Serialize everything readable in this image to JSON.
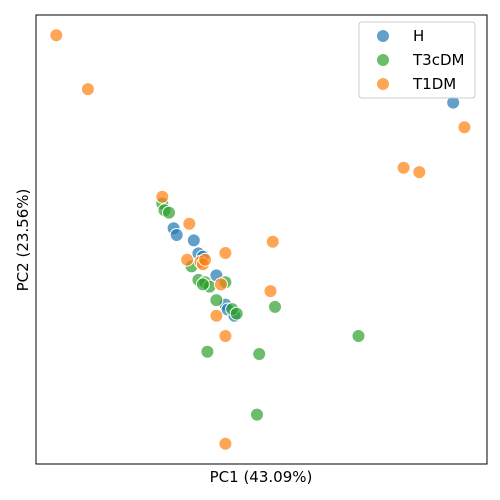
{
  "chart_data": {
    "type": "scatter",
    "xlabel": "PC1 (43.09%)",
    "ylabel": "PC2 (23.56%)",
    "xlim": [
      0,
      100
    ],
    "ylim": [
      0,
      100
    ],
    "ticks_shown": false,
    "grid": false,
    "legend_position": "top-right",
    "series": [
      {
        "name": "H",
        "color": "#1f77b4",
        "points": [
          [
            30.5,
            52.5
          ],
          [
            31.2,
            51.0
          ],
          [
            35.0,
            49.8
          ],
          [
            36.0,
            46.9
          ],
          [
            37.0,
            46.2
          ],
          [
            40.0,
            42.0
          ],
          [
            42.0,
            35.5
          ],
          [
            42.5,
            34.4
          ],
          [
            44.0,
            33.0
          ],
          [
            92.5,
            80.5
          ]
        ]
      },
      {
        "name": "T3cDM",
        "color": "#2ca02c",
        "points": [
          [
            28.0,
            58.0
          ],
          [
            28.5,
            56.5
          ],
          [
            29.5,
            56.0
          ],
          [
            34.5,
            44.0
          ],
          [
            36.0,
            41.0
          ],
          [
            37.5,
            40.5
          ],
          [
            38.5,
            39.5
          ],
          [
            37.0,
            40.0
          ],
          [
            42.0,
            40.5
          ],
          [
            40.0,
            36.5
          ],
          [
            43.5,
            34.5
          ],
          [
            44.5,
            33.5
          ],
          [
            53.0,
            35.0
          ],
          [
            71.5,
            28.5
          ],
          [
            38.0,
            25.0
          ],
          [
            49.5,
            24.5
          ],
          [
            49.0,
            11.0
          ]
        ]
      },
      {
        "name": "T1DM",
        "color": "#ff7f0e",
        "points": [
          [
            4.5,
            95.5
          ],
          [
            11.5,
            83.5
          ],
          [
            28.0,
            59.5
          ],
          [
            34.0,
            53.5
          ],
          [
            33.5,
            45.5
          ],
          [
            36.5,
            45.0
          ],
          [
            37.0,
            44.5
          ],
          [
            37.5,
            45.5
          ],
          [
            42.0,
            47.0
          ],
          [
            52.5,
            49.5
          ],
          [
            41.0,
            40.0
          ],
          [
            40.0,
            33.0
          ],
          [
            52.0,
            38.5
          ],
          [
            42.0,
            28.5
          ],
          [
            81.5,
            66.0
          ],
          [
            85.0,
            65.0
          ],
          [
            95.0,
            75.0
          ],
          [
            42.0,
            4.5
          ]
        ]
      }
    ]
  }
}
